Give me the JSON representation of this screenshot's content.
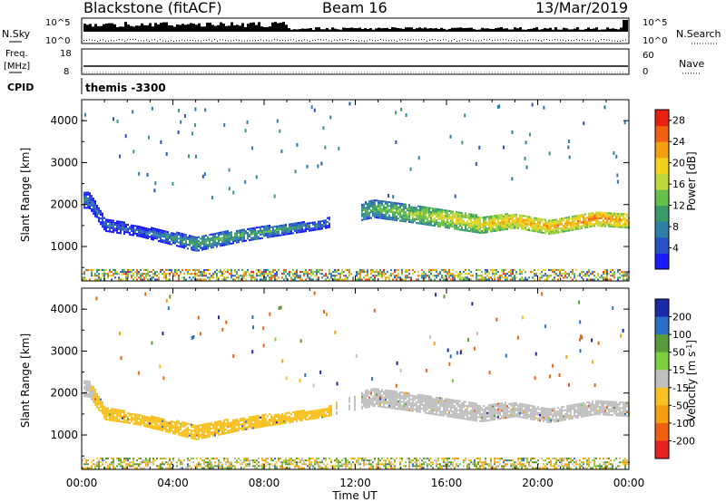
{
  "header": {
    "title": "Blackstone (fitACF)",
    "beam": "Beam 16",
    "date": "13/Mar/2019"
  },
  "strips": {
    "nsky_label": "N.Sky",
    "nsearch_label": "N.Search",
    "nsky_ticks": [
      "10^5",
      "10^0"
    ],
    "freq_label": "Freq.",
    "freq_unit": "[MHz]",
    "freq_ticks": [
      "18",
      "8"
    ],
    "nave_label": "Nave",
    "nave_ticks": [
      "60",
      "0"
    ],
    "cpid_label": "CPID",
    "cpid_value": "themis -3300"
  },
  "panels": {
    "ylabel": "Slant Range [km]",
    "xlabel": "Time UT",
    "power_label": "Power [dB]",
    "velocity_label": "Velocity [m s",
    "velocity_sup": "-1",
    "velocity_close": "]"
  },
  "chart_data": [
    {
      "type": "heatmap",
      "name": "power",
      "x": [
        "00:00",
        "04:00",
        "08:00",
        "12:00",
        "16:00",
        "20:00",
        "00:00"
      ],
      "xlim": [
        0,
        24
      ],
      "yticks": [
        1000,
        2000,
        3000,
        4000
      ],
      "ylim": [
        180,
        4500
      ],
      "colorbar_ticks": [
        4,
        8,
        12,
        16,
        20,
        24,
        28
      ],
      "colorbar_range": [
        0,
        30
      ],
      "colors": [
        "#1a1aff",
        "#2a52c8",
        "#2e7ea8",
        "#3a9a6a",
        "#67c04a",
        "#bcd83a",
        "#f2d21a",
        "#f5a010",
        "#f06010",
        "#e82010"
      ],
      "echo_band": [
        {
          "hour": 0.3,
          "center": 2100,
          "width": 400,
          "power": 8
        },
        {
          "hour": 1.0,
          "center": 1500,
          "width": 300,
          "power": 7
        },
        {
          "hour": 2.5,
          "center": 1350,
          "width": 250,
          "power": 6
        },
        {
          "hour": 5.0,
          "center": 1050,
          "width": 350,
          "power": 12
        },
        {
          "hour": 7.0,
          "center": 1250,
          "width": 300,
          "power": 12
        },
        {
          "hour": 9.0,
          "center": 1400,
          "width": 250,
          "power": 11
        },
        {
          "hour": 10.5,
          "center": 1500,
          "width": 200,
          "power": 8
        },
        {
          "hour": 12.8,
          "center": 1900,
          "width": 450,
          "power": 13
        },
        {
          "hour": 14.5,
          "center": 1750,
          "width": 400,
          "power": 16
        },
        {
          "hour": 16.0,
          "center": 1650,
          "width": 450,
          "power": 18
        },
        {
          "hour": 17.5,
          "center": 1500,
          "width": 400,
          "power": 20
        },
        {
          "hour": 19.0,
          "center": 1600,
          "width": 350,
          "power": 22
        },
        {
          "hour": 20.5,
          "center": 1450,
          "width": 350,
          "power": 22
        },
        {
          "hour": 22.5,
          "center": 1650,
          "width": 350,
          "power": 24
        },
        {
          "hour": 24.0,
          "center": 1600,
          "width": 350,
          "power": 22
        }
      ]
    },
    {
      "type": "heatmap",
      "name": "velocity",
      "x": [
        "00:00",
        "04:00",
        "08:00",
        "12:00",
        "16:00",
        "20:00",
        "00:00"
      ],
      "xlim": [
        0,
        24
      ],
      "yticks": [
        1000,
        2000,
        3000,
        4000
      ],
      "ylim": [
        180,
        4500
      ],
      "colorbar_ticks": [
        200,
        100,
        50,
        15,
        -15,
        -50,
        -100,
        -200
      ],
      "colors": [
        "#1a2aa8",
        "#2a6ec8",
        "#5a9a3a",
        "#7cd040",
        "#c0c0c0",
        "#f8c020",
        "#f5a010",
        "#f06010",
        "#e82020"
      ],
      "echo_band": [
        {
          "hour": 0.3,
          "center": 2100,
          "width": 400,
          "velocity": -10
        },
        {
          "hour": 1.0,
          "center": 1500,
          "width": 300,
          "velocity": -30
        },
        {
          "hour": 2.5,
          "center": 1350,
          "width": 250,
          "velocity": -30
        },
        {
          "hour": 5.0,
          "center": 1050,
          "width": 350,
          "velocity": -40
        },
        {
          "hour": 7.0,
          "center": 1250,
          "width": 300,
          "velocity": -40
        },
        {
          "hour": 9.0,
          "center": 1400,
          "width": 250,
          "velocity": -30
        },
        {
          "hour": 10.5,
          "center": 1500,
          "width": 200,
          "velocity": -20
        },
        {
          "hour": 12.8,
          "center": 1900,
          "width": 450,
          "velocity": 0
        },
        {
          "hour": 14.5,
          "center": 1750,
          "width": 400,
          "velocity": 0
        },
        {
          "hour": 16.0,
          "center": 1650,
          "width": 450,
          "velocity": 0
        },
        {
          "hour": 17.5,
          "center": 1500,
          "width": 400,
          "velocity": 0
        },
        {
          "hour": 19.0,
          "center": 1600,
          "width": 350,
          "velocity": 0
        },
        {
          "hour": 20.5,
          "center": 1450,
          "width": 350,
          "velocity": 0
        },
        {
          "hour": 22.5,
          "center": 1650,
          "width": 350,
          "velocity": 0
        },
        {
          "hour": 24.0,
          "center": 1600,
          "width": 350,
          "velocity": 0
        }
      ]
    }
  ]
}
